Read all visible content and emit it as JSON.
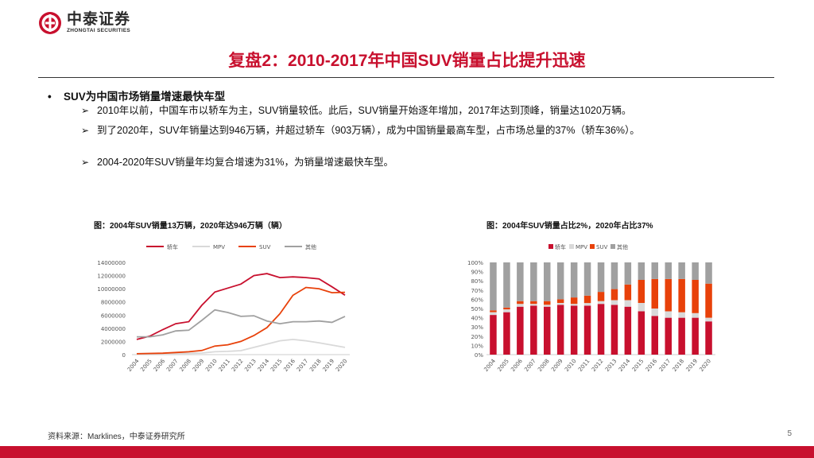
{
  "brand": {
    "name_cn": "中泰证券",
    "name_en": "ZHONGTAI SECURITIES"
  },
  "title": "复盘2：2010-2017年中国SUV销量占比提升迅速",
  "main_bullet": "SUV为中国市场销量增速最快车型",
  "sub_bullets": [
    "2010年以前，中国车市以轿车为主，SUV销量较低。此后，SUV销量开始逐年增加，2017年达到顶峰，销量达1020万辆。",
    "到了2020年，SUV年销量达到946万辆，并超过轿车（903万辆），成为中国销量最高车型，占市场总量的37%（轿车36%）。",
    "2004-2020年SUV销量年均复合增速为31%，为销量增速最快车型。"
  ],
  "chart_left_caption": "图：2004年SUV销量13万辆，2020年达946万辆（辆）",
  "chart_right_caption": "图：2004年SUV销量占比2%，2020年占比37%",
  "source": "资料来源：Marklines，中泰证券研究所",
  "page_number": "5",
  "colors": {
    "brand_red": "#c8102e",
    "sedan": "#c8102e",
    "mpv": "#d9d9d9",
    "suv": "#e8410a",
    "other": "#a0a0a0"
  },
  "chart_data": [
    {
      "type": "line",
      "title": "图：2004年SUV销量13万辆，2020年达946万辆（辆）",
      "x": [
        "2004",
        "2005",
        "2006",
        "2007",
        "2008",
        "2009",
        "2010",
        "2011",
        "2012",
        "2013",
        "2014",
        "2015",
        "2016",
        "2017",
        "2018",
        "2019",
        "2020"
      ],
      "yticks": [
        "0",
        "2000000",
        "4000000",
        "6000000",
        "8000000",
        "10000000",
        "12000000",
        "14000000"
      ],
      "ylim": [
        0,
        14000000
      ],
      "series": [
        {
          "name": "轿车",
          "color": "#c8102e",
          "values": [
            2300000,
            2800000,
            3800000,
            4700000,
            5000000,
            7500000,
            9500000,
            10100000,
            10700000,
            12000000,
            12300000,
            11700000,
            11800000,
            11700000,
            11500000,
            10300000,
            9030000
          ]
        },
        {
          "name": "MPV",
          "color": "#d9d9d9",
          "values": [
            150000,
            170000,
            190000,
            200000,
            200000,
            240000,
            440000,
            490000,
            600000,
            1100000,
            1600000,
            2100000,
            2300000,
            2100000,
            1800000,
            1450000,
            1100000
          ]
        },
        {
          "name": "SUV",
          "color": "#e8410a",
          "values": [
            130000,
            180000,
            220000,
            320000,
            440000,
            630000,
            1300000,
            1500000,
            2000000,
            2900000,
            4100000,
            6200000,
            9000000,
            10200000,
            10000000,
            9400000,
            9460000
          ]
        },
        {
          "name": "其他",
          "color": "#a0a0a0",
          "values": [
            2700000,
            2700000,
            3000000,
            3600000,
            3700000,
            5200000,
            6800000,
            6400000,
            5800000,
            5900000,
            5100000,
            4700000,
            5000000,
            5000000,
            5100000,
            4900000,
            5800000
          ]
        }
      ]
    },
    {
      "type": "bar",
      "stacked": true,
      "percent": true,
      "title": "图：2004年SUV销量占比2%，2020年占比37%",
      "categories": [
        "2004",
        "2005",
        "2006",
        "2007",
        "2008",
        "2009",
        "2010",
        "2011",
        "2012",
        "2013",
        "2014",
        "2015",
        "2016",
        "2017",
        "2018",
        "2019",
        "2020"
      ],
      "yticks": [
        "0%",
        "10%",
        "20%",
        "30%",
        "40%",
        "50%",
        "60%",
        "70%",
        "80%",
        "90%",
        "100%"
      ],
      "ylim": [
        0,
        100
      ],
      "series": [
        {
          "name": "轿车",
          "color": "#c8102e",
          "values": [
            43,
            46,
            52,
            53,
            52,
            54,
            53,
            53,
            55,
            54,
            52,
            47,
            42,
            40,
            40,
            40,
            36
          ]
        },
        {
          "name": "MPV",
          "color": "#d9d9d9",
          "values": [
            3,
            3,
            3,
            2,
            2,
            2,
            2,
            3,
            3,
            5,
            7,
            9,
            8,
            7,
            6,
            5,
            4
          ]
        },
        {
          "name": "SUV",
          "color": "#e8410a",
          "values": [
            2,
            2,
            3,
            3,
            4,
            4,
            7,
            8,
            10,
            12,
            17,
            25,
            32,
            35,
            36,
            36,
            37
          ]
        },
        {
          "name": "其他",
          "color": "#a0a0a0",
          "values": [
            52,
            49,
            42,
            42,
            42,
            40,
            38,
            36,
            32,
            29,
            24,
            19,
            18,
            18,
            18,
            19,
            23
          ]
        }
      ]
    }
  ]
}
